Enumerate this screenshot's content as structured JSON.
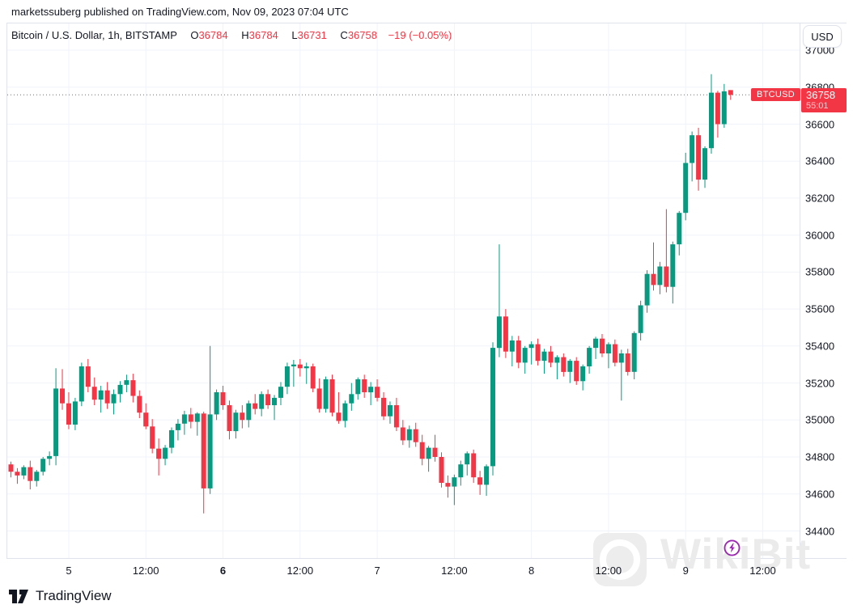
{
  "topbar": {
    "text": "marketssuberg published on TradingView.com, Nov 09, 2023 07:04 UTC"
  },
  "legend": {
    "symbol": "Bitcoin / U.S. Dollar, 1h, BITSTAMP",
    "open_label": "O",
    "open": "36784",
    "high_label": "H",
    "high": "36784",
    "low_label": "L",
    "low": "36731",
    "close_label": "C",
    "close": "36758",
    "change": "−19 (−0.05%)"
  },
  "price_axis": {
    "currency": "USD",
    "ticks": [
      37000,
      36800,
      36600,
      36400,
      36200,
      36000,
      35800,
      35600,
      35400,
      35200,
      35000,
      34800,
      34600,
      34400
    ]
  },
  "price_label": {
    "symbol": "BTCUSD",
    "price": "36758",
    "countdown": "55:01",
    "value": 36758
  },
  "time_axis": {
    "labels": [
      {
        "text": "5",
        "bold": false
      },
      {
        "text": "12:00",
        "bold": false
      },
      {
        "text": "6",
        "bold": true
      },
      {
        "text": "12:00",
        "bold": false
      },
      {
        "text": "7",
        "bold": false
      },
      {
        "text": "12:00",
        "bold": false
      },
      {
        "text": "8",
        "bold": false
      },
      {
        "text": "12:00",
        "bold": false
      },
      {
        "text": "9",
        "bold": false
      },
      {
        "text": "12:00",
        "bold": false
      }
    ]
  },
  "watermark": {
    "text": "WikiBit"
  },
  "attribution": {
    "text": "TradingView"
  },
  "colors": {
    "up": "#089981",
    "down": "#f23645",
    "grid": "#f0f3fa",
    "border": "#e0e3eb",
    "text": "#131722",
    "label_bg": "#f23645",
    "bolt": "#9c27b0"
  },
  "chart_data": {
    "type": "candlestick",
    "title": "Bitcoin / U.S. Dollar",
    "symbol": "BTCUSD",
    "exchange": "BITSTAMP",
    "interval": "1h",
    "x_range": "Nov 4 2023 15:00 UTC to Nov 9 2023 07:00 UTC, hourly bars",
    "ylim": [
      34400,
      37000
    ],
    "grid": true,
    "price_line": 36758,
    "last_bar": {
      "open": 36784,
      "high": 36784,
      "low": 36731,
      "close": 36758,
      "change": -19,
      "change_pct": -0.05
    },
    "candles": [
      [
        34760,
        34775,
        34690,
        34720
      ],
      [
        34720,
        34740,
        34655,
        34700
      ],
      [
        34700,
        34755,
        34680,
        34745
      ],
      [
        34745,
        34780,
        34625,
        34670
      ],
      [
        34670,
        34730,
        34640,
        34720
      ],
      [
        34720,
        34800,
        34700,
        34790
      ],
      [
        34790,
        34830,
        34755,
        34805
      ],
      [
        34805,
        35280,
        34755,
        35170
      ],
      [
        35170,
        35275,
        35055,
        35090
      ],
      [
        35090,
        35150,
        34950,
        34975
      ],
      [
        34975,
        35120,
        34945,
        35100
      ],
      [
        35100,
        35310,
        35075,
        35290
      ],
      [
        35290,
        35330,
        35150,
        35180
      ],
      [
        35180,
        35230,
        35080,
        35110
      ],
      [
        35110,
        35185,
        35040,
        35160
      ],
      [
        35160,
        35205,
        35060,
        35090
      ],
      [
        35090,
        35165,
        35030,
        35140
      ],
      [
        35140,
        35210,
        35095,
        35190
      ],
      [
        35190,
        35245,
        35150,
        35215
      ],
      [
        35215,
        35250,
        35095,
        35130
      ],
      [
        35130,
        35160,
        35010,
        35040
      ],
      [
        35040,
        35090,
        34950,
        34965
      ],
      [
        34965,
        35005,
        34820,
        34845
      ],
      [
        34845,
        34900,
        34700,
        34790
      ],
      [
        34790,
        34865,
        34755,
        34850
      ],
      [
        34850,
        34960,
        34820,
        34945
      ],
      [
        34945,
        35005,
        34890,
        34980
      ],
      [
        34980,
        35050,
        34920,
        35030
      ],
      [
        35030,
        35065,
        34955,
        34990
      ],
      [
        34990,
        35042,
        34915,
        35035
      ],
      [
        35035,
        35045,
        34495,
        34630
      ],
      [
        34630,
        35400,
        34600,
        35030
      ],
      [
        35030,
        35165,
        35000,
        35150
      ],
      [
        35150,
        35185,
        35055,
        35080
      ],
      [
        35080,
        35105,
        34895,
        34940
      ],
      [
        34940,
        35055,
        34900,
        35040
      ],
      [
        35040,
        35080,
        34955,
        35000
      ],
      [
        35000,
        35105,
        34960,
        35090
      ],
      [
        35090,
        35140,
        35030,
        35060
      ],
      [
        35060,
        35155,
        35020,
        35140
      ],
      [
        35140,
        35165,
        35060,
        35080
      ],
      [
        35080,
        35135,
        35000,
        35120
      ],
      [
        35120,
        35205,
        35080,
        35180
      ],
      [
        35180,
        35310,
        35140,
        35290
      ],
      [
        35290,
        35325,
        35180,
        35300
      ],
      [
        35300,
        35330,
        35235,
        35280
      ],
      [
        35280,
        35310,
        35195,
        35290
      ],
      [
        35290,
        35305,
        35150,
        35170
      ],
      [
        35170,
        35225,
        35040,
        35060
      ],
      [
        35060,
        35235,
        35040,
        35220
      ],
      [
        35220,
        35245,
        35020,
        35040
      ],
      [
        35040,
        35150,
        34980,
        34995
      ],
      [
        34995,
        35105,
        34960,
        35090
      ],
      [
        35090,
        35200,
        35050,
        35140
      ],
      [
        35140,
        35230,
        35110,
        35220
      ],
      [
        35220,
        35245,
        35120,
        35150
      ],
      [
        35150,
        35205,
        35080,
        35180
      ],
      [
        35180,
        35220,
        35100,
        35120
      ],
      [
        35120,
        35150,
        35000,
        35020
      ],
      [
        35020,
        35100,
        34980,
        35080
      ],
      [
        35080,
        35120,
        34940,
        34960
      ],
      [
        34960,
        35000,
        34865,
        34890
      ],
      [
        34890,
        34970,
        34850,
        34950
      ],
      [
        34950,
        34985,
        34855,
        34880
      ],
      [
        34880,
        34920,
        34755,
        34790
      ],
      [
        34790,
        34860,
        34720,
        34850
      ],
      [
        34850,
        34920,
        34775,
        34800
      ],
      [
        34800,
        34825,
        34635,
        34660
      ],
      [
        34660,
        34700,
        34580,
        34640
      ],
      [
        34640,
        34705,
        34540,
        34690
      ],
      [
        34690,
        34780,
        34645,
        34760
      ],
      [
        34760,
        34830,
        34700,
        34820
      ],
      [
        34820,
        34840,
        34660,
        34690
      ],
      [
        34690,
        34725,
        34595,
        34650
      ],
      [
        34650,
        34760,
        34590,
        34750
      ],
      [
        34750,
        35420,
        34700,
        35390
      ],
      [
        35390,
        35950,
        35340,
        35560
      ],
      [
        35560,
        35600,
        35335,
        35370
      ],
      [
        35370,
        35455,
        35290,
        35430
      ],
      [
        35430,
        35455,
        35280,
        35310
      ],
      [
        35310,
        35400,
        35250,
        35390
      ],
      [
        35390,
        35425,
        35300,
        35410
      ],
      [
        35410,
        35440,
        35295,
        35320
      ],
      [
        35320,
        35385,
        35250,
        35370
      ],
      [
        35370,
        35400,
        35285,
        35310
      ],
      [
        35310,
        35350,
        35220,
        35340
      ],
      [
        35340,
        35360,
        35235,
        35260
      ],
      [
        35260,
        35330,
        35200,
        35320
      ],
      [
        35320,
        35340,
        35190,
        35210
      ],
      [
        35210,
        35300,
        35160,
        35290
      ],
      [
        35290,
        35400,
        35250,
        35390
      ],
      [
        35390,
        35450,
        35330,
        35440
      ],
      [
        35440,
        35465,
        35340,
        35360
      ],
      [
        35360,
        35420,
        35280,
        35410
      ],
      [
        35410,
        35435,
        35290,
        35310
      ],
      [
        35310,
        35380,
        35105,
        35360
      ],
      [
        35360,
        35385,
        35240,
        35260
      ],
      [
        35260,
        35480,
        35220,
        35470
      ],
      [
        35470,
        35645,
        35430,
        35620
      ],
      [
        35620,
        35810,
        35580,
        35790
      ],
      [
        35790,
        35960,
        35700,
        35730
      ],
      [
        35730,
        35855,
        35680,
        35830
      ],
      [
        35830,
        36140,
        35690,
        35720
      ],
      [
        35720,
        35965,
        35630,
        35950
      ],
      [
        35950,
        36130,
        35890,
        36120
      ],
      [
        36120,
        36445,
        36080,
        36390
      ],
      [
        36390,
        36560,
        36290,
        36540
      ],
      [
        36540,
        36580,
        36240,
        36300
      ],
      [
        36300,
        36480,
        36255,
        36470
      ],
      [
        36470,
        36870,
        36440,
        36770
      ],
      [
        36770,
        36780,
        36527,
        36600
      ],
      [
        36600,
        36817,
        36580,
        36777
      ],
      [
        36784,
        36784,
        36731,
        36758
      ]
    ]
  }
}
